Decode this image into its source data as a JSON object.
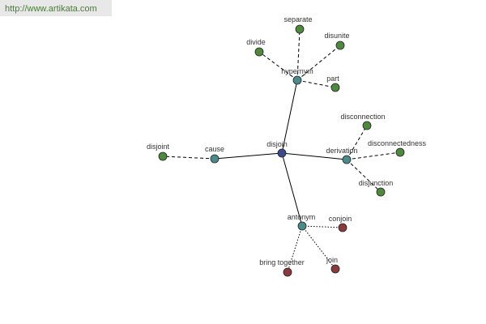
{
  "header": {
    "url": "http://www.artikata.com"
  },
  "nodes": [
    {
      "label": "disjoin"
    },
    {
      "label": "hypernym"
    },
    {
      "label": "cause"
    },
    {
      "label": "derivation"
    },
    {
      "label": "antonym"
    },
    {
      "label": "separate"
    },
    {
      "label": "disunite"
    },
    {
      "label": "divide"
    },
    {
      "label": "part"
    },
    {
      "label": "disjoint"
    },
    {
      "label": "disconnection"
    },
    {
      "label": "disconnectedness"
    },
    {
      "label": "disjunction"
    },
    {
      "label": "conjoin"
    },
    {
      "label": "bring together"
    },
    {
      "label": "join"
    }
  ]
}
